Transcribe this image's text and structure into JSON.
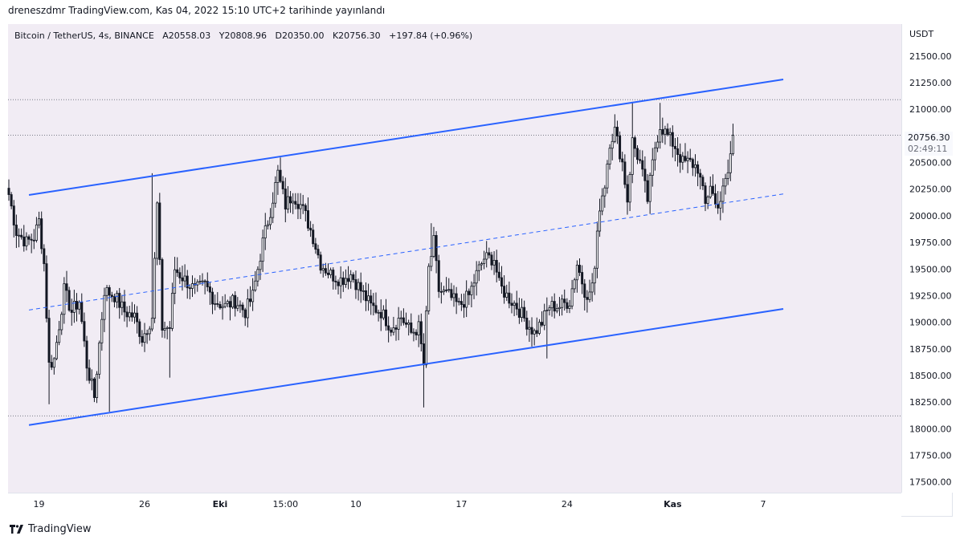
{
  "header": {
    "publish_line": "dreneszdmr TradingView.com, Kas 04, 2022 15:10 UTC+2 tarihinde yayınlandı"
  },
  "legend": {
    "symbol": "Bitcoin / TetherUS, 4s, BINANCE",
    "open": "A20558.03",
    "high": "Y20808.96",
    "low": "D20350.00",
    "close": "K20756.30",
    "change": "+197.84 (+0.96%)"
  },
  "price_axis": {
    "unit": "USDT",
    "last_price": "20756.30",
    "countdown": "02:49:11"
  },
  "footer": {
    "brand": "TradingView"
  },
  "colors": {
    "plot_bg": "#f1ecf4",
    "channel": "#2962ff",
    "candle": "#131722"
  },
  "chart_data": {
    "type": "candlestick",
    "symbol": "Bitcoin / TetherUS",
    "timeframe": "4s",
    "exchange": "BINANCE",
    "y_unit": "USDT",
    "ylim": [
      17400,
      21800
    ],
    "y_ticks": [
      17500,
      17750,
      18000,
      18250,
      18500,
      18750,
      19000,
      19250,
      19500,
      19750,
      20000,
      20250,
      20500,
      20750,
      21000,
      21250,
      21500
    ],
    "y_tick_labels": [
      "17500.00",
      "17750.00",
      "18000.00",
      "18250.00",
      "18500.00",
      "18750.00",
      "19000.00",
      "19250.00",
      "19500.00",
      "19750.00",
      "20000.00",
      "20250.00",
      "20500.00",
      "20750.00",
      "21000.00",
      "21250.00",
      "21500.00"
    ],
    "x_ticks": [
      {
        "label": "19",
        "bar": 12,
        "bold": false
      },
      {
        "label": "26",
        "bar": 54,
        "bold": false
      },
      {
        "label": "Eki",
        "bar": 84,
        "bold": true
      },
      {
        "label": "15:00",
        "bar": 110,
        "bold": false
      },
      {
        "label": "10",
        "bar": 138,
        "bold": false
      },
      {
        "label": "17",
        "bar": 180,
        "bold": false
      },
      {
        "label": "24",
        "bar": 222,
        "bold": false
      },
      {
        "label": "Kas",
        "bar": 264,
        "bold": true
      },
      {
        "label": "7",
        "bar": 300,
        "bold": false
      }
    ],
    "horizontal_levels": [
      21090,
      20756.3,
      18120
    ],
    "last_close": 20756.3,
    "anchors": [
      [
        0,
        20200
      ],
      [
        3,
        19850
      ],
      [
        7,
        19750
      ],
      [
        10,
        19800
      ],
      [
        12,
        19950
      ],
      [
        14,
        19550
      ],
      [
        16,
        18600
      ],
      [
        18,
        18650
      ],
      [
        22,
        19300
      ],
      [
        25,
        19100
      ],
      [
        28,
        19200
      ],
      [
        31,
        18600
      ],
      [
        34,
        18300
      ],
      [
        38,
        19300
      ],
      [
        42,
        19250
      ],
      [
        46,
        19100
      ],
      [
        50,
        19050
      ],
      [
        53,
        18850
      ],
      [
        57,
        19050
      ],
      [
        59,
        20100
      ],
      [
        61,
        18950
      ],
      [
        64,
        18950
      ],
      [
        66,
        19500
      ],
      [
        70,
        19400
      ],
      [
        74,
        19300
      ],
      [
        78,
        19350
      ],
      [
        82,
        19200
      ],
      [
        86,
        19150
      ],
      [
        90,
        19200
      ],
      [
        94,
        19100
      ],
      [
        97,
        19250
      ],
      [
        101,
        19750
      ],
      [
        104,
        20050
      ],
      [
        107,
        20400
      ],
      [
        110,
        20100
      ],
      [
        113,
        20200
      ],
      [
        116,
        20100
      ],
      [
        118,
        20000
      ],
      [
        121,
        19800
      ],
      [
        124,
        19550
      ],
      [
        128,
        19450
      ],
      [
        132,
        19400
      ],
      [
        136,
        19450
      ],
      [
        140,
        19300
      ],
      [
        144,
        19150
      ],
      [
        148,
        19100
      ],
      [
        152,
        18950
      ],
      [
        156,
        19050
      ],
      [
        160,
        18900
      ],
      [
        163,
        18950
      ],
      [
        165,
        18600
      ],
      [
        167,
        19500
      ],
      [
        169,
        19750
      ],
      [
        171,
        19300
      ],
      [
        175,
        19250
      ],
      [
        179,
        19150
      ],
      [
        183,
        19250
      ],
      [
        186,
        19450
      ],
      [
        189,
        19600
      ],
      [
        193,
        19600
      ],
      [
        195,
        19350
      ],
      [
        198,
        19250
      ],
      [
        202,
        19150
      ],
      [
        206,
        19000
      ],
      [
        209,
        18900
      ],
      [
        212,
        19000
      ],
      [
        215,
        19150
      ],
      [
        219,
        19150
      ],
      [
        223,
        19200
      ],
      [
        226,
        19550
      ],
      [
        229,
        19300
      ],
      [
        231,
        19250
      ],
      [
        233,
        19500
      ],
      [
        235,
        20100
      ],
      [
        237,
        20300
      ],
      [
        239,
        20700
      ],
      [
        241,
        20800
      ],
      [
        244,
        20500
      ],
      [
        246,
        20150
      ],
      [
        248,
        20700
      ],
      [
        251,
        20500
      ],
      [
        254,
        20150
      ],
      [
        257,
        20650
      ],
      [
        259,
        20850
      ],
      [
        262,
        20750
      ],
      [
        265,
        20650
      ],
      [
        268,
        20500
      ],
      [
        271,
        20500
      ],
      [
        274,
        20450
      ],
      [
        277,
        20100
      ],
      [
        279,
        20300
      ],
      [
        281,
        20100
      ],
      [
        283,
        20150
      ],
      [
        286,
        20400
      ],
      [
        288,
        20756.3
      ]
    ],
    "channel_lines": [
      {
        "name": "upper",
        "style": "solid",
        "x": [
          8,
          308
        ],
        "y": [
          20195,
          21280
        ]
      },
      {
        "name": "middle",
        "style": "dashed",
        "x": [
          8,
          308
        ],
        "y": [
          19115,
          20205
        ]
      },
      {
        "name": "lower",
        "style": "solid",
        "x": [
          8,
          308
        ],
        "y": [
          18035,
          19125
        ]
      }
    ]
  }
}
